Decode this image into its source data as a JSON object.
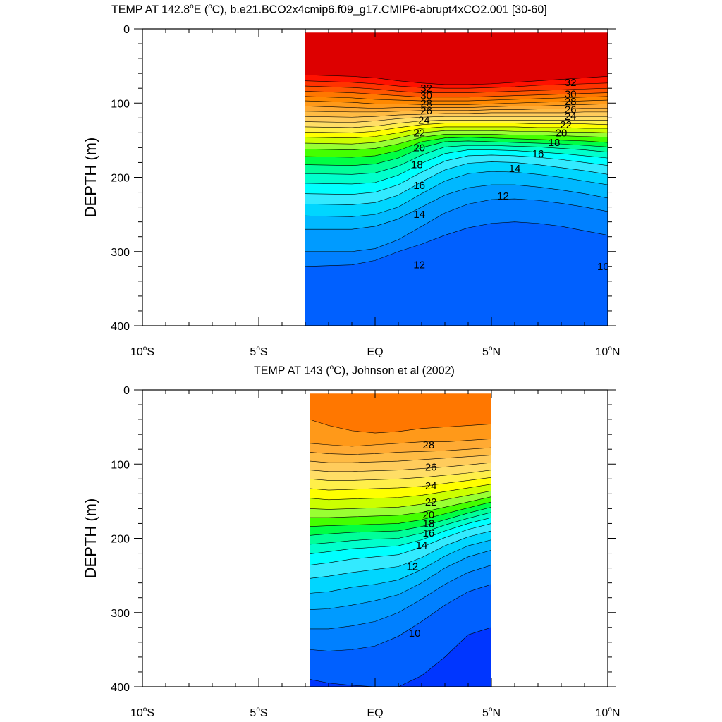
{
  "chart_data": [
    {
      "type": "heatmap",
      "title": "TEMP AT 142.8°E (°C), b.e21.BCO2x4cmip6.f09_g17.CMIP6-abrupt4xCO2.001 [30-60]",
      "title_main": "TEMP AT 142.8",
      "title_deg": "o",
      "title_unit": "E (",
      "title_deg2": "o",
      "title_rest": "C), b.e21.BCO2x4cmip6.f09_g17.CMIP6-abrupt4xCO2.001 [30-60]",
      "xlabel": "",
      "ylabel": "DEPTH (m)",
      "xlim": [
        -10,
        10
      ],
      "ylim": [
        400,
        0
      ],
      "data_lat_range": [
        -3,
        10
      ],
      "x_ticks": [
        {
          "value": -10,
          "label": "10",
          "deg": "o",
          "hemi": "S"
        },
        {
          "value": -5,
          "label": "5",
          "deg": "o",
          "hemi": "S"
        },
        {
          "value": 0,
          "label": "EQ",
          "deg": "",
          "hemi": ""
        },
        {
          "value": 5,
          "label": "5",
          "deg": "o",
          "hemi": "N"
        },
        {
          "value": 10,
          "label": "10",
          "deg": "o",
          "hemi": "N"
        }
      ],
      "y_ticks": [
        {
          "value": 0,
          "label": "0"
        },
        {
          "value": 100,
          "label": "100"
        },
        {
          "value": 200,
          "label": "200"
        },
        {
          "value": 300,
          "label": "300"
        },
        {
          "value": 400,
          "label": "400"
        }
      ],
      "isotherm_depth_m": {
        "lat": [
          -3,
          -1,
          0,
          1,
          2,
          3,
          4,
          5,
          6,
          7,
          8,
          9,
          10
        ],
        "by_temp": {
          "34": [
            62,
            64,
            66,
            70,
            73,
            75,
            75,
            74,
            72,
            70,
            68,
            66,
            64
          ],
          "33": [
            70,
            72,
            74,
            77,
            79,
            80,
            80,
            79,
            78,
            76,
            75,
            74,
            73
          ],
          "32": [
            77,
            79,
            81,
            84,
            86,
            86,
            86,
            85,
            84,
            83,
            82,
            81,
            80
          ],
          "31": [
            84,
            86,
            88,
            90,
            92,
            92,
            92,
            91,
            90,
            89,
            88,
            87,
            86
          ],
          "30": [
            91,
            93,
            95,
            96,
            97,
            97,
            97,
            96,
            95,
            94,
            93,
            92,
            91
          ],
          "29": [
            97,
            99,
            101,
            101,
            102,
            102,
            102,
            101,
            100,
            99,
            98,
            97,
            96
          ],
          "28": [
            104,
            106,
            107,
            106,
            106,
            106,
            106,
            105,
            104,
            104,
            103,
            102,
            101
          ],
          "27": [
            111,
            112,
            112,
            111,
            110,
            110,
            110,
            109,
            109,
            108,
            108,
            107,
            107
          ],
          "26": [
            118,
            119,
            118,
            116,
            115,
            114,
            114,
            113,
            113,
            113,
            113,
            112,
            112
          ],
          "25": [
            125,
            126,
            124,
            121,
            119,
            118,
            118,
            118,
            118,
            118,
            118,
            118,
            118
          ],
          "24": [
            132,
            133,
            131,
            127,
            124,
            123,
            123,
            123,
            123,
            123,
            123,
            123,
            123
          ],
          "23": [
            139,
            140,
            138,
            133,
            129,
            127,
            127,
            127,
            127,
            128,
            128,
            128,
            129
          ],
          "22": [
            146,
            147,
            145,
            140,
            134,
            132,
            132,
            132,
            132,
            133,
            133,
            134,
            134
          ],
          "21": [
            154,
            155,
            153,
            147,
            140,
            137,
            137,
            137,
            138,
            138,
            139,
            139,
            140
          ],
          "20": [
            162,
            163,
            161,
            155,
            146,
            142,
            142,
            142,
            143,
            143,
            144,
            145,
            146
          ],
          "19": [
            172,
            173,
            171,
            164,
            152,
            147,
            146,
            147,
            148,
            149,
            150,
            151,
            153
          ],
          "18": [
            183,
            184,
            182,
            174,
            160,
            152,
            151,
            152,
            153,
            154,
            155,
            157,
            159
          ],
          "17": [
            195,
            196,
            194,
            185,
            170,
            159,
            157,
            157,
            158,
            159,
            161,
            163,
            166
          ],
          "16": [
            208,
            209,
            207,
            197,
            181,
            168,
            163,
            163,
            164,
            166,
            168,
            171,
            174
          ],
          "15": [
            222,
            223,
            220,
            210,
            193,
            178,
            171,
            170,
            171,
            173,
            176,
            180,
            184
          ],
          "14": [
            236,
            237,
            234,
            224,
            206,
            190,
            181,
            179,
            180,
            183,
            187,
            191,
            196
          ],
          "13": [
            252,
            253,
            250,
            240,
            222,
            205,
            195,
            192,
            193,
            196,
            200,
            205,
            210
          ],
          "12": [
            270,
            270,
            266,
            256,
            240,
            224,
            214,
            210,
            210,
            213,
            217,
            222,
            228
          ],
          "11": [
            300,
            300,
            296,
            284,
            266,
            248,
            236,
            230,
            229,
            231,
            235,
            240,
            246
          ],
          "10": [
            320,
            318,
            312,
            300,
            290,
            278,
            268,
            262,
            260,
            262,
            266,
            272,
            278
          ]
        }
      },
      "contour_labels": [
        {
          "text": "32",
          "lat": 2.2,
          "depth": 80
        },
        {
          "text": "30",
          "lat": 2.2,
          "depth": 90
        },
        {
          "text": "28",
          "lat": 2.2,
          "depth": 100
        },
        {
          "text": "26",
          "lat": 2.2,
          "depth": 110
        },
        {
          "text": "24",
          "lat": 2.1,
          "depth": 123
        },
        {
          "text": "22",
          "lat": 1.9,
          "depth": 140
        },
        {
          "text": "20",
          "lat": 1.9,
          "depth": 160
        },
        {
          "text": "18",
          "lat": 1.8,
          "depth": 183
        },
        {
          "text": "16",
          "lat": 1.9,
          "depth": 211
        },
        {
          "text": "14",
          "lat": 1.9,
          "depth": 250
        },
        {
          "text": "12",
          "lat": 1.9,
          "depth": 318
        },
        {
          "text": "32",
          "lat": 8.4,
          "depth": 72
        },
        {
          "text": "30",
          "lat": 8.4,
          "depth": 88
        },
        {
          "text": "28",
          "lat": 8.4,
          "depth": 98
        },
        {
          "text": "26",
          "lat": 8.4,
          "depth": 109
        },
        {
          "text": "24",
          "lat": 8.4,
          "depth": 118
        },
        {
          "text": "22",
          "lat": 8.2,
          "depth": 129
        },
        {
          "text": "20",
          "lat": 8.0,
          "depth": 140
        },
        {
          "text": "18",
          "lat": 7.7,
          "depth": 153
        },
        {
          "text": "16",
          "lat": 7.0,
          "depth": 168
        },
        {
          "text": "14",
          "lat": 6.0,
          "depth": 188
        },
        {
          "text": "12",
          "lat": 5.5,
          "depth": 225
        },
        {
          "text": "10",
          "lat": 9.8,
          "depth": 320
        }
      ]
    },
    {
      "type": "heatmap",
      "title": "TEMP AT 143 (°C), Johnson et al (2002)",
      "title_main": "TEMP AT 143 (",
      "title_deg": "o",
      "title_rest": "C), Johnson et al (2002)",
      "xlabel": "",
      "ylabel": "DEPTH (m)",
      "xlim": [
        -10,
        10
      ],
      "ylim": [
        400,
        0
      ],
      "data_lat_range": [
        -2.8,
        5
      ],
      "x_ticks": [
        {
          "value": -10,
          "label": "10",
          "deg": "o",
          "hemi": "S"
        },
        {
          "value": -5,
          "label": "5",
          "deg": "o",
          "hemi": "S"
        },
        {
          "value": 0,
          "label": "EQ",
          "deg": "",
          "hemi": ""
        },
        {
          "value": 5,
          "label": "5",
          "deg": "o",
          "hemi": "N"
        },
        {
          "value": 10,
          "label": "10",
          "deg": "o",
          "hemi": "N"
        }
      ],
      "y_ticks": [
        {
          "value": 0,
          "label": "0"
        },
        {
          "value": 100,
          "label": "100"
        },
        {
          "value": 200,
          "label": "200"
        },
        {
          "value": 300,
          "label": "300"
        },
        {
          "value": 400,
          "label": "400"
        }
      ],
      "isotherm_depth_m": {
        "lat": [
          -2.8,
          -2,
          -1,
          0,
          1,
          2,
          3,
          4,
          5
        ],
        "by_temp": {
          "29": [
            40,
            48,
            55,
            58,
            56,
            52,
            50,
            48,
            46
          ],
          "28": [
            72,
            74,
            76,
            74,
            72,
            70,
            70,
            68,
            66
          ],
          "27": [
            84,
            86,
            87,
            86,
            84,
            83,
            82,
            80,
            78
          ],
          "26": [
            96,
            98,
            98,
            97,
            96,
            94,
            92,
            90,
            88
          ],
          "25": [
            108,
            110,
            110,
            109,
            108,
            106,
            104,
            101,
            98
          ],
          "24": [
            120,
            122,
            122,
            121,
            120,
            118,
            115,
            112,
            108
          ],
          "23": [
            133,
            135,
            134,
            133,
            132,
            130,
            126,
            122,
            118
          ],
          "22": [
            146,
            148,
            147,
            146,
            145,
            142,
            137,
            132,
            127
          ],
          "21": [
            160,
            161,
            160,
            159,
            158,
            154,
            148,
            142,
            136
          ],
          "20": [
            172,
            172,
            171,
            170,
            169,
            165,
            158,
            151,
            144
          ],
          "19": [
            184,
            183,
            182,
            181,
            180,
            175,
            167,
            159,
            151
          ],
          "18": [
            196,
            194,
            192,
            191,
            190,
            184,
            175,
            166,
            158
          ],
          "17": [
            208,
            206,
            203,
            201,
            200,
            193,
            182,
            173,
            165
          ],
          "16": [
            221,
            218,
            214,
            212,
            210,
            202,
            190,
            180,
            172
          ],
          "15": [
            236,
            233,
            228,
            225,
            222,
            212,
            199,
            188,
            180
          ],
          "14": [
            254,
            251,
            246,
            242,
            238,
            226,
            210,
            198,
            190
          ],
          "13": [
            274,
            272,
            266,
            262,
            256,
            242,
            224,
            210,
            202
          ],
          "12": [
            296,
            295,
            290,
            284,
            276,
            260,
            240,
            225,
            216
          ],
          "11": [
            322,
            322,
            318,
            312,
            300,
            282,
            262,
            246,
            236
          ],
          "10": [
            350,
            352,
            350,
            345,
            332,
            312,
            290,
            272,
            262
          ],
          "9": [
            390,
            395,
            398,
            400,
            400,
            385,
            360,
            330,
            320
          ]
        }
      },
      "contour_labels": [
        {
          "text": "28",
          "lat": 2.3,
          "depth": 74
        },
        {
          "text": "26",
          "lat": 2.4,
          "depth": 104
        },
        {
          "text": "24",
          "lat": 2.4,
          "depth": 129
        },
        {
          "text": "22",
          "lat": 2.4,
          "depth": 151
        },
        {
          "text": "20",
          "lat": 2.3,
          "depth": 168
        },
        {
          "text": "18",
          "lat": 2.3,
          "depth": 180
        },
        {
          "text": "16",
          "lat": 2.3,
          "depth": 193
        },
        {
          "text": "14",
          "lat": 2.0,
          "depth": 209
        },
        {
          "text": "12",
          "lat": 1.6,
          "depth": 238
        },
        {
          "text": "10",
          "lat": 1.7,
          "depth": 328
        }
      ]
    }
  ],
  "colors": {
    "ramp": [
      "#0036ff",
      "#0060ff",
      "#0080ff",
      "#009bff",
      "#00b8ff",
      "#00d6ff",
      "#33eaff",
      "#00ffff",
      "#00ffcc",
      "#00ff99",
      "#00ff44",
      "#44ff00",
      "#99ff33",
      "#ccff00",
      "#ffff00",
      "#ffef4a",
      "#ffde66",
      "#ffcc5c",
      "#ffbb44",
      "#ffaa33",
      "#ff9919",
      "#ff8800",
      "#ff7700",
      "#ff5500",
      "#ff3300",
      "#ff1100",
      "#ee0000",
      "#dd0000",
      "#cc0000"
    ],
    "ramp_min_temp": 8,
    "background": "#ffffff",
    "axis": "#000000"
  }
}
